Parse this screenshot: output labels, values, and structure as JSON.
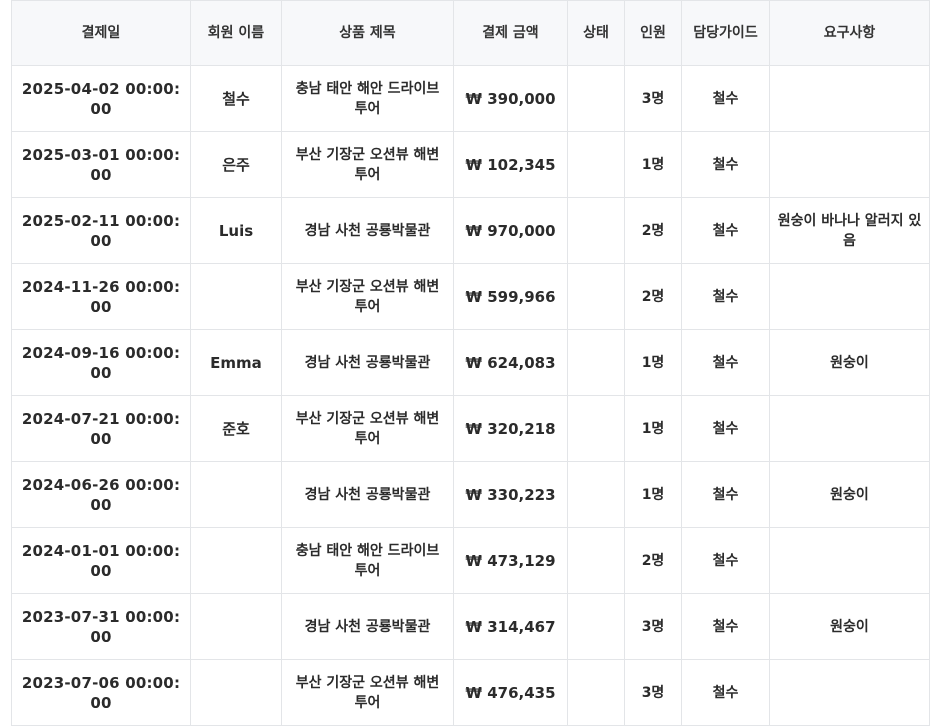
{
  "table": {
    "headers": [
      "결제일",
      "회원 이름",
      "상품 제목",
      "결제 금액",
      "상태",
      "인원",
      "담당가이드",
      "요구사항"
    ],
    "rows": [
      {
        "date": "2025-04-02 00:00:00",
        "member": "철수",
        "product": "충남 태안 해안 드라이브 투어",
        "amount": "₩ 390,000",
        "status": "",
        "people": "3명",
        "manager": "철수",
        "request": ""
      },
      {
        "date": "2025-03-01 00:00:00",
        "member": "은주",
        "product": "부산 기장군 오션뷰 해변 투어",
        "amount": "₩ 102,345",
        "status": "",
        "people": "1명",
        "manager": "철수",
        "request": ""
      },
      {
        "date": "2025-02-11 00:00:00",
        "member": "Luis",
        "product": "경남 사천 공룡박물관",
        "amount": "₩ 970,000",
        "status": "",
        "people": "2명",
        "manager": "철수",
        "request": "원숭이 바나나 알러지 있음"
      },
      {
        "date": "2024-11-26 00:00:00",
        "member": "",
        "product": "부산 기장군 오션뷰 해변 투어",
        "amount": "₩ 599,966",
        "status": "",
        "people": "2명",
        "manager": "철수",
        "request": ""
      },
      {
        "date": "2024-09-16 00:00:00",
        "member": "Emma",
        "product": "경남 사천 공룡박물관",
        "amount": "₩ 624,083",
        "status": "",
        "people": "1명",
        "manager": "철수",
        "request": "원숭이"
      },
      {
        "date": "2024-07-21 00:00:00",
        "member": "준호",
        "product": "부산 기장군 오션뷰 해변 투어",
        "amount": "₩ 320,218",
        "status": "",
        "people": "1명",
        "manager": "철수",
        "request": ""
      },
      {
        "date": "2024-06-26 00:00:00",
        "member": "",
        "product": "경남 사천 공룡박물관",
        "amount": "₩ 330,223",
        "status": "",
        "people": "1명",
        "manager": "철수",
        "request": "원숭이"
      },
      {
        "date": "2024-01-01 00:00:00",
        "member": "",
        "product": "충남 태안 해안 드라이브 투어",
        "amount": "₩ 473,129",
        "status": "",
        "people": "2명",
        "manager": "철수",
        "request": ""
      },
      {
        "date": "2023-07-31 00:00:00",
        "member": "",
        "product": "경남 사천 공룡박물관",
        "amount": "₩ 314,467",
        "status": "",
        "people": "3명",
        "manager": "철수",
        "request": "원숭이"
      },
      {
        "date": "2023-07-06 00:00:00",
        "member": "",
        "product": "부산 기장군 오션뷰 해변 투어",
        "amount": "₩ 476,435",
        "status": "",
        "people": "3명",
        "manager": "철수",
        "request": ""
      }
    ]
  }
}
